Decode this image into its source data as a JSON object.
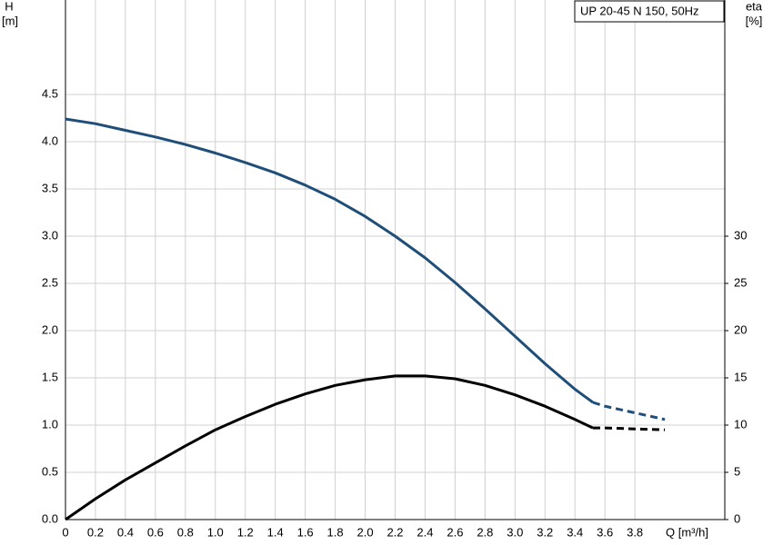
{
  "chart_data": {
    "type": "line",
    "title": "UP 20-45 N 150, 50Hz",
    "y_label": "H",
    "y_unit": "[m]",
    "y2_label": "eta",
    "y2_unit": "[%]",
    "x_label": "Q [m³/h]",
    "x": [
      0,
      0.2,
      0.4,
      0.6,
      0.8,
      1.0,
      1.2,
      1.4,
      1.6,
      1.8,
      2.0,
      2.2,
      2.4,
      2.6,
      2.8,
      3.0,
      3.2,
      3.4,
      3.52,
      3.6,
      3.8,
      4.0
    ],
    "xlim": [
      0,
      4.4
    ],
    "xticks": [
      0,
      0.2,
      0.4,
      0.6,
      0.8,
      {
        "value": 1.0,
        "label": "1.0"
      },
      1.2,
      1.4,
      1.6,
      1.8,
      {
        "value": 2.0,
        "label": "2.0"
      },
      2.2,
      2.4,
      2.6,
      2.8,
      {
        "value": 3.0,
        "label": "3.0"
      },
      3.2,
      3.4,
      3.6,
      3.8
    ],
    "ylim": [
      0,
      5.5
    ],
    "yticks": [
      {
        "value": 0,
        "label": "0.0"
      },
      0.5,
      {
        "value": 1,
        "label": "1.0"
      },
      1.5,
      {
        "value": 2,
        "label": "2.0"
      },
      2.5,
      {
        "value": 3,
        "label": "3.0"
      },
      3.5,
      {
        "value": 4,
        "label": "4.0"
      },
      4.5
    ],
    "y2lim": [
      0,
      55
    ],
    "y2ticks": [
      0,
      5,
      10,
      15,
      20,
      25,
      30
    ],
    "grid": true,
    "series": [
      {
        "color": "#1f4e79",
        "dashed": false,
        "values": [
          4.24,
          4.19,
          4.12,
          4.05,
          3.97,
          3.88,
          3.78,
          3.67,
          3.54,
          3.39,
          3.21,
          3.0,
          2.77,
          2.51,
          2.23,
          1.94,
          1.65,
          1.38,
          1.24,
          null,
          null,
          null
        ]
      },
      {
        "color": "#1f4e79",
        "dashed": true,
        "values": [
          null,
          null,
          null,
          null,
          null,
          null,
          null,
          null,
          null,
          null,
          null,
          null,
          null,
          null,
          null,
          null,
          null,
          null,
          1.24,
          1.2,
          1.13,
          1.06
        ]
      },
      {
        "color": "#000000",
        "dashed": false,
        "axis": "y2",
        "values": [
          0,
          2.2,
          4.2,
          6.0,
          7.8,
          9.5,
          10.9,
          12.2,
          13.3,
          14.2,
          14.8,
          15.2,
          15.2,
          14.9,
          14.2,
          13.2,
          12.0,
          10.6,
          9.7,
          null,
          null,
          null
        ]
      },
      {
        "color": "#000000",
        "dashed": true,
        "axis": "y2",
        "values": [
          null,
          null,
          null,
          null,
          null,
          null,
          null,
          null,
          null,
          null,
          null,
          null,
          null,
          null,
          null,
          null,
          null,
          null,
          9.7,
          9.7,
          9.6,
          9.5
        ]
      }
    ]
  }
}
